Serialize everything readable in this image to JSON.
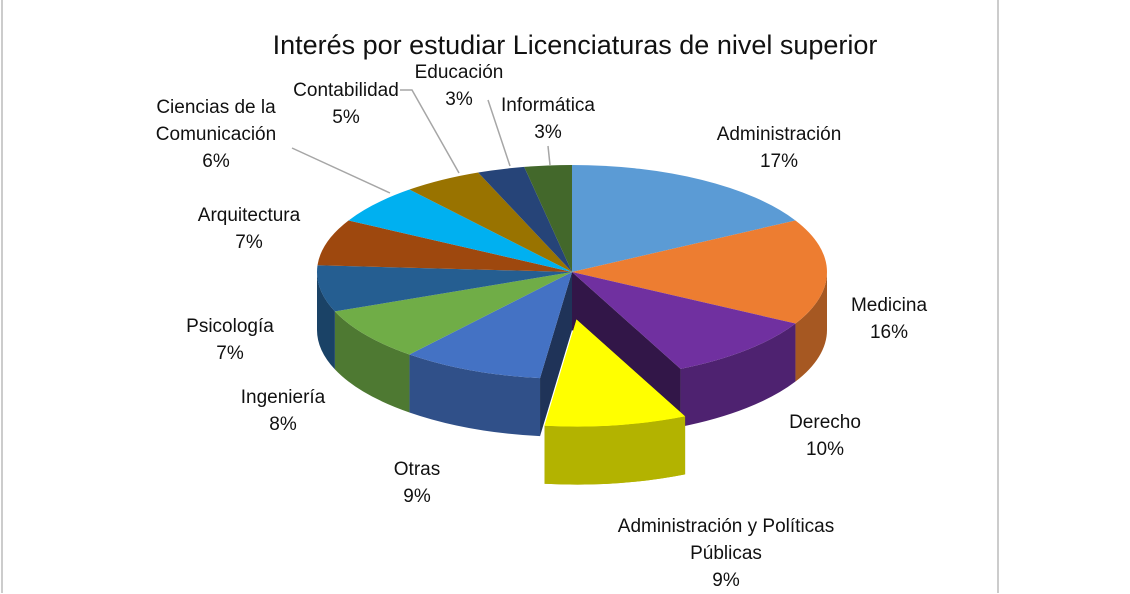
{
  "chart_data": {
    "type": "pie3d",
    "title": "Interés por estudiar Licenciaturas de nivel superior",
    "categories": [
      "Administración",
      "Medicina",
      "Derecho",
      "Administración y Políticas Públicas",
      "Otras",
      "Ingeniería",
      "Psicología",
      "Arquitectura",
      "Ciencias de la Comunicación",
      "Contabilidad",
      "Educación",
      "Informática"
    ],
    "values": [
      17,
      16,
      10,
      9,
      9,
      8,
      7,
      7,
      6,
      5,
      3,
      3
    ],
    "value_labels": [
      "17%",
      "16%",
      "10%",
      "9%",
      "9%",
      "8%",
      "7%",
      "7%",
      "6%",
      "5%",
      "3%",
      "3%"
    ],
    "colors": [
      "#5b9bd5",
      "#ed7d31",
      "#7030a0",
      "#ffff00",
      "#4472c4",
      "#70ad47",
      "#255e91",
      "#9e480e",
      "#00b0f0",
      "#997300",
      "#264478",
      "#43682b"
    ],
    "exploded": [
      "Administración y Políticas Públicas"
    ]
  }
}
